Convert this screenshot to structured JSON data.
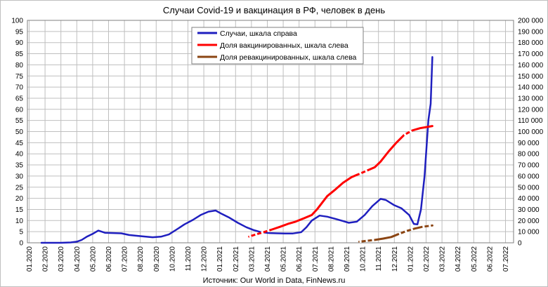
{
  "chart_data": {
    "type": "line",
    "title": "Случаи Covid-19 и вакцинация в РФ, человек в день",
    "source": "Источник: Our World in Data, FinNews.ru",
    "x_tick_labels": [
      "01.2020",
      "02.2020",
      "03.2020",
      "04.2020",
      "05.2020",
      "06.2020",
      "07.2020",
      "08.2020",
      "09.2020",
      "10.2020",
      "11.2020",
      "12.2020",
      "01.2021",
      "02.2021",
      "03.2021",
      "04.2021",
      "05.2021",
      "06.2021",
      "07.2021",
      "08.2021",
      "09.2021",
      "10.2021",
      "11.2021",
      "12.2021",
      "01.2022",
      "02.2022",
      "03.2022",
      "04.2022",
      "05.2022",
      "06.2022",
      "07.2022"
    ],
    "y_left": {
      "ylim": [
        0,
        100
      ],
      "ticks": [
        "0",
        "5",
        "10",
        "15",
        "20",
        "25",
        "30",
        "35",
        "40",
        "45",
        "50",
        "55",
        "60",
        "65",
        "70",
        "75",
        "80",
        "85",
        "90",
        "95",
        "100"
      ]
    },
    "y_right": {
      "ylim": [
        0,
        200000
      ],
      "ticks": [
        "0",
        "10 000",
        "20 000",
        "30 000",
        "40 000",
        "50 000",
        "60 000",
        "70 000",
        "80 000",
        "90 000",
        "100 000",
        "110 000",
        "120 000",
        "130 000",
        "140 000",
        "150 000",
        "160 000",
        "170 000",
        "180 000",
        "190 000",
        "200 000"
      ]
    },
    "grid": true,
    "legend": "top-center",
    "series": [
      {
        "name": "Случаи, шкала справа",
        "axis": "right",
        "color": "#1f1fbf",
        "points": [
          [
            "2020-01-25",
            0
          ],
          [
            "2020-03-01",
            0
          ],
          [
            "2020-03-20",
            300
          ],
          [
            "2020-04-01",
            1000
          ],
          [
            "2020-04-10",
            2500
          ],
          [
            "2020-04-20",
            5500
          ],
          [
            "2020-05-01",
            8000
          ],
          [
            "2020-05-12",
            11000
          ],
          [
            "2020-05-25",
            9000
          ],
          [
            "2020-06-10",
            8800
          ],
          [
            "2020-06-25",
            8500
          ],
          [
            "2020-07-10",
            7000
          ],
          [
            "2020-07-25",
            6300
          ],
          [
            "2020-08-10",
            5600
          ],
          [
            "2020-08-25",
            5000
          ],
          [
            "2020-09-10",
            5500
          ],
          [
            "2020-09-25",
            7500
          ],
          [
            "2020-10-10",
            12000
          ],
          [
            "2020-10-25",
            16500
          ],
          [
            "2020-11-10",
            20500
          ],
          [
            "2020-11-25",
            25000
          ],
          [
            "2020-12-10",
            28000
          ],
          [
            "2020-12-24",
            29000
          ],
          [
            "2021-01-05",
            26000
          ],
          [
            "2021-01-20",
            22500
          ],
          [
            "2021-02-05",
            18000
          ],
          [
            "2021-02-20",
            14000
          ],
          [
            "2021-03-05",
            11500
          ],
          [
            "2021-03-20",
            9500
          ],
          [
            "2021-04-05",
            8800
          ],
          [
            "2021-04-20",
            8500
          ],
          [
            "2021-05-05",
            8300
          ],
          [
            "2021-05-20",
            8400
          ],
          [
            "2021-06-05",
            9500
          ],
          [
            "2021-06-15",
            14000
          ],
          [
            "2021-06-25",
            20000
          ],
          [
            "2021-07-10",
            24500
          ],
          [
            "2021-07-25",
            23500
          ],
          [
            "2021-08-10",
            21500
          ],
          [
            "2021-08-25",
            19500
          ],
          [
            "2021-09-05",
            18000
          ],
          [
            "2021-09-20",
            19000
          ],
          [
            "2021-10-05",
            25000
          ],
          [
            "2021-10-20",
            33000
          ],
          [
            "2021-11-05",
            39500
          ],
          [
            "2021-11-15",
            38500
          ],
          [
            "2021-11-30",
            34000
          ],
          [
            "2021-12-15",
            31000
          ],
          [
            "2021-12-30",
            25000
          ],
          [
            "2022-01-08",
            17000
          ],
          [
            "2022-01-15",
            16500
          ],
          [
            "2022-01-22",
            30000
          ],
          [
            "2022-01-29",
            60000
          ],
          [
            "2022-02-05",
            110000
          ],
          [
            "2022-02-09",
            125000
          ],
          [
            "2022-02-12",
            167000
          ]
        ]
      },
      {
        "name": "Доля вакцинированных, шкала слева",
        "axis": "left",
        "color": "#ff0000",
        "dashed_segments": [
          [
            "2021-02-25",
            "2021-04-15"
          ],
          [
            "2021-09-25",
            "2021-10-20"
          ],
          [
            "2021-12-20",
            "2022-01-10"
          ]
        ],
        "points": [
          [
            "2021-02-25",
            2.8
          ],
          [
            "2021-03-10",
            3.8
          ],
          [
            "2021-03-25",
            4.8
          ],
          [
            "2021-04-10",
            6.0
          ],
          [
            "2021-04-25",
            7.2
          ],
          [
            "2021-05-10",
            8.5
          ],
          [
            "2021-05-25",
            9.5
          ],
          [
            "2021-06-10",
            11.0
          ],
          [
            "2021-06-25",
            12.5
          ],
          [
            "2021-07-05",
            15.0
          ],
          [
            "2021-07-15",
            18.0
          ],
          [
            "2021-07-25",
            21.0
          ],
          [
            "2021-08-10",
            24.0
          ],
          [
            "2021-08-25",
            27.0
          ],
          [
            "2021-09-10",
            29.5
          ],
          [
            "2021-09-25",
            31.0
          ],
          [
            "2021-10-10",
            32.5
          ],
          [
            "2021-10-25",
            34.0
          ],
          [
            "2021-11-05",
            36.5
          ],
          [
            "2021-11-20",
            41.0
          ],
          [
            "2021-12-05",
            45.0
          ],
          [
            "2021-12-20",
            48.5
          ],
          [
            "2022-01-05",
            50.5
          ],
          [
            "2022-01-20",
            51.5
          ],
          [
            "2022-02-12",
            52.5
          ]
        ]
      },
      {
        "name": "Доля ревакцинированных, шкала слева",
        "axis": "left",
        "color": "#8b4513",
        "dashed_segments": [
          [
            "2021-09-25",
            "2021-10-25"
          ],
          [
            "2021-12-10",
            "2022-01-10"
          ],
          [
            "2022-01-20",
            "2022-02-12"
          ]
        ],
        "points": [
          [
            "2021-09-25",
            0.5
          ],
          [
            "2021-10-10",
            0.9
          ],
          [
            "2021-10-25",
            1.3
          ],
          [
            "2021-11-10",
            1.9
          ],
          [
            "2021-11-25",
            2.6
          ],
          [
            "2021-12-10",
            4.0
          ],
          [
            "2021-12-25",
            5.3
          ],
          [
            "2022-01-10",
            6.4
          ],
          [
            "2022-01-25",
            7.2
          ],
          [
            "2022-02-12",
            7.8
          ]
        ]
      }
    ]
  }
}
